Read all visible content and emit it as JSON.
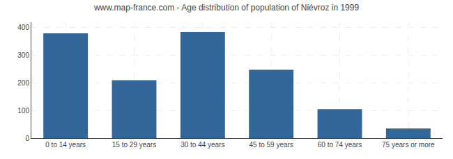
{
  "chart_data": {
    "type": "bar",
    "title": "www.map-france.com - Age distribution of population of Niévroz in 1999",
    "categories": [
      "0 to 14 years",
      "15 to 29 years",
      "30 to 44 years",
      "45 to 59 years",
      "60 to 74 years",
      "75 years or more"
    ],
    "values": [
      380,
      210,
      385,
      248,
      105,
      35
    ],
    "color": "#336699",
    "ylim": [
      0,
      420
    ],
    "yticks": [
      0,
      100,
      200,
      300,
      400
    ],
    "grid": true
  }
}
